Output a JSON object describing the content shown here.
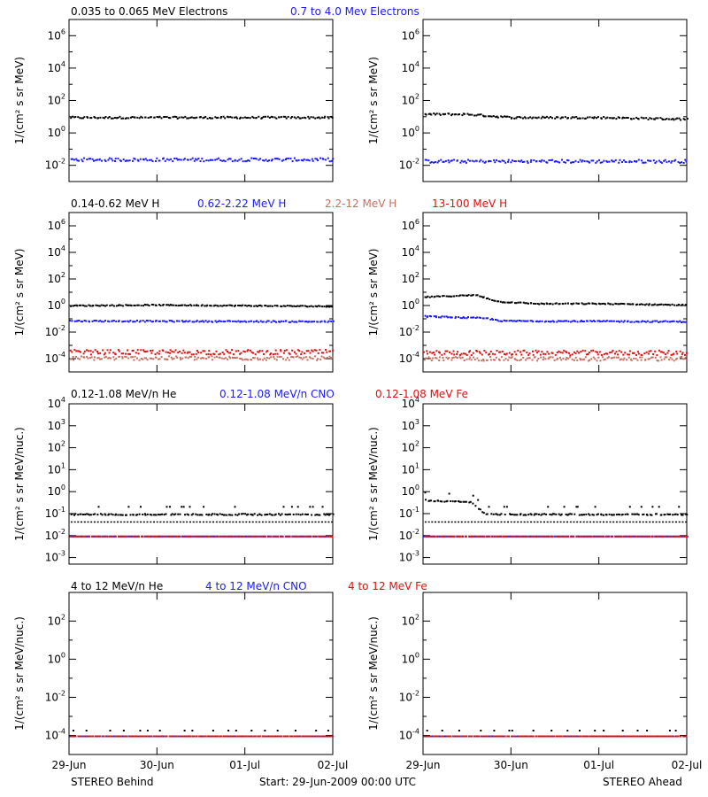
{
  "chart_data": [
    {
      "id": "electrons",
      "type": "scatter",
      "ylabel": "1/(cm² s sr MeV)",
      "yscale": "log",
      "ylim_log10": [
        -3,
        7
      ],
      "yticks": [
        {
          "base": "10",
          "exp": "6"
        },
        {
          "base": "10",
          "exp": "4"
        },
        {
          "base": "10",
          "exp": "2"
        },
        {
          "base": "10",
          "exp": "0"
        },
        {
          "base": "10",
          "exp": "-2"
        }
      ],
      "ytick_values_log10": [
        6,
        4,
        2,
        0,
        -2
      ],
      "legend": [
        {
          "label": "0.035 to 0.065 MeV Electrons",
          "color": "#000000"
        },
        {
          "label": "0.7 to 4.0 Mev Electrons",
          "color": "#1a1aff"
        }
      ],
      "series": [
        {
          "color": "#000000",
          "behind_log10": [
            [
              0,
              1.0
            ],
            [
              1,
              1.0
            ],
            [
              2,
              1.0
            ],
            [
              3,
              1.0
            ]
          ],
          "ahead_log10": [
            [
              0,
              1.2
            ],
            [
              0.5,
              1.2
            ],
            [
              1,
              1.0
            ],
            [
              2,
              1.0
            ],
            [
              3,
              0.9
            ]
          ],
          "scatter": 0.06
        },
        {
          "color": "#1a1aff",
          "behind_log10": [
            [
              0,
              -1.6
            ],
            [
              3,
              -1.6
            ]
          ],
          "ahead_log10": [
            [
              0,
              -1.7
            ],
            [
              3,
              -1.7
            ]
          ],
          "scatter": 0.1
        }
      ]
    },
    {
      "id": "protons",
      "type": "scatter",
      "ylabel": "1/(cm² s sr MeV)",
      "yscale": "log",
      "ylim_log10": [
        -5,
        7
      ],
      "yticks": [
        {
          "base": "10",
          "exp": "6"
        },
        {
          "base": "10",
          "exp": "4"
        },
        {
          "base": "10",
          "exp": "2"
        },
        {
          "base": "10",
          "exp": "0"
        },
        {
          "base": "10",
          "exp": "-2"
        },
        {
          "base": "10",
          "exp": "-4"
        }
      ],
      "ytick_values_log10": [
        6,
        4,
        2,
        0,
        -2,
        -4
      ],
      "legend": [
        {
          "label": "0.14-0.62 MeV H",
          "color": "#000000"
        },
        {
          "label": "0.62-2.22 MeV H",
          "color": "#1a1aff"
        },
        {
          "label": "2.2-12 MeV H",
          "color": "#c87060"
        },
        {
          "label": "13-100 MeV H",
          "color": "#e01010"
        }
      ],
      "series": [
        {
          "color": "#000000",
          "behind_log10": [
            [
              0,
              0.05
            ],
            [
              1,
              0.1
            ],
            [
              2,
              0.05
            ],
            [
              3,
              0.0
            ]
          ],
          "ahead_log10": [
            [
              0,
              0.7
            ],
            [
              0.6,
              0.85
            ],
            [
              0.85,
              0.35
            ],
            [
              1.3,
              0.2
            ],
            [
              2,
              0.2
            ],
            [
              3,
              0.1
            ]
          ],
          "scatter": 0.04
        },
        {
          "color": "#1a1aff",
          "behind_log10": [
            [
              0,
              -1.1
            ],
            [
              3,
              -1.15
            ]
          ],
          "ahead_log10": [
            [
              0,
              -0.75
            ],
            [
              0.7,
              -0.9
            ],
            [
              0.9,
              -1.1
            ],
            [
              3,
              -1.15
            ]
          ],
          "scatter": 0.05
        },
        {
          "color": "#c87060",
          "behind_log10": [
            [
              0,
              -3.9
            ],
            [
              3,
              -3.9
            ]
          ],
          "ahead_log10": [
            [
              0,
              -3.95
            ],
            [
              3,
              -3.95
            ]
          ],
          "scatter": 0.15
        },
        {
          "color": "#e01010",
          "behind_log10": [
            [
              0,
              -3.45
            ],
            [
              3,
              -3.45
            ]
          ],
          "ahead_log10": [
            [
              0,
              -3.5
            ],
            [
              3,
              -3.5
            ]
          ],
          "scatter": 0.18
        }
      ]
    },
    {
      "id": "heavy_low",
      "type": "scatter",
      "ylabel": "1/(cm² s sr MeV/nuc.)",
      "yscale": "log",
      "ylim_log10": [
        -3.3,
        4
      ],
      "yticks": [
        {
          "base": "10",
          "exp": "4"
        },
        {
          "base": "10",
          "exp": "3"
        },
        {
          "base": "10",
          "exp": "2"
        },
        {
          "base": "10",
          "exp": "1"
        },
        {
          "base": "10",
          "exp": "0"
        },
        {
          "base": "10",
          "exp": "-1"
        },
        {
          "base": "10",
          "exp": "-2"
        },
        {
          "base": "10",
          "exp": "-3"
        }
      ],
      "ytick_values_log10": [
        4,
        3,
        2,
        1,
        0,
        -1,
        -2,
        -3
      ],
      "legend": [
        {
          "label": "0.12-1.08 MeV/n He",
          "color": "#000000"
        },
        {
          "label": "0.12-1.08 MeV/n CNO",
          "color": "#1a1aff"
        },
        {
          "label": "0.12-1.08 MeV Fe",
          "color": "#e01010"
        }
      ],
      "series": [
        {
          "color": "#000000",
          "behind_log10": [
            [
              0,
              -1.0
            ],
            [
              3,
              -1.0
            ]
          ],
          "ahead_log10": [
            [
              0,
              -0.35
            ],
            [
              0.55,
              -0.45
            ],
            [
              0.7,
              -1.0
            ],
            [
              3,
              -1.0
            ]
          ],
          "scatter": 0.03,
          "floor_log10": -1.35
        },
        {
          "color": "#1a1aff",
          "behind_log10": [
            [
              0,
              -2.0
            ],
            [
              3,
              -2.0
            ]
          ],
          "ahead_log10": [
            [
              0,
              -2.0
            ],
            [
              3,
              -2.0
            ]
          ],
          "scatter": 0.0
        },
        {
          "color": "#e01010",
          "behind_log10": [
            [
              0,
              -2.0
            ],
            [
              3,
              -2.0
            ]
          ],
          "ahead_log10": [
            [
              0,
              -2.0
            ],
            [
              3,
              -2.0
            ]
          ],
          "scatter": 0.0
        }
      ]
    },
    {
      "id": "heavy_high",
      "type": "scatter",
      "ylabel": "1/(cm² s sr MeV/nuc.)",
      "yscale": "log",
      "ylim_log10": [
        -5,
        3.5
      ],
      "yticks": [
        {
          "base": "10",
          "exp": "2"
        },
        {
          "base": "10",
          "exp": "0"
        },
        {
          "base": "10",
          "exp": "-2"
        },
        {
          "base": "10",
          "exp": "-4"
        }
      ],
      "ytick_values_log10": [
        2,
        0,
        -2,
        -4
      ],
      "legend": [
        {
          "label": "4 to 12 MeV/n He",
          "color": "#000000"
        },
        {
          "label": "4 to 12 MeV/n CNO",
          "color": "#1a1aff"
        },
        {
          "label": "4 to 12 MeV Fe",
          "color": "#e01010"
        }
      ],
      "series": [
        {
          "color": "#000000",
          "behind_log10": [
            [
              0,
              -3.7
            ],
            [
              3,
              -3.7
            ]
          ],
          "ahead_log10": [
            [
              0,
              -3.7
            ],
            [
              3,
              -3.7
            ]
          ],
          "scatter": 0.0,
          "sparse": true
        },
        {
          "color": "#1a1aff",
          "behind_log10": [
            [
              0,
              -4.0
            ],
            [
              3,
              -4.0
            ]
          ],
          "ahead_log10": [
            [
              0,
              -4.0
            ],
            [
              3,
              -4.0
            ]
          ],
          "scatter": 0.0
        },
        {
          "color": "#e01010",
          "behind_log10": [
            [
              0,
              -4.0
            ],
            [
              3,
              -4.0
            ]
          ],
          "ahead_log10": [
            [
              0,
              -4.0
            ],
            [
              3,
              -4.0
            ]
          ],
          "scatter": 0.0
        }
      ]
    }
  ],
  "x_axis": {
    "range_days": [
      0,
      3
    ],
    "tick_labels": [
      "29-Jun",
      "30-Jun",
      "01-Jul",
      "02-Jul"
    ],
    "tick_values_days": [
      0,
      1,
      2,
      3
    ]
  },
  "footer": {
    "left": "STEREO Behind",
    "center": "Start: 29-Jun-2009 00:00 UTC",
    "right": "STEREO Ahead"
  },
  "colors": {
    "black": "#000000",
    "blue": "#1a1aff",
    "salmon": "#c87060",
    "red": "#e01010"
  }
}
